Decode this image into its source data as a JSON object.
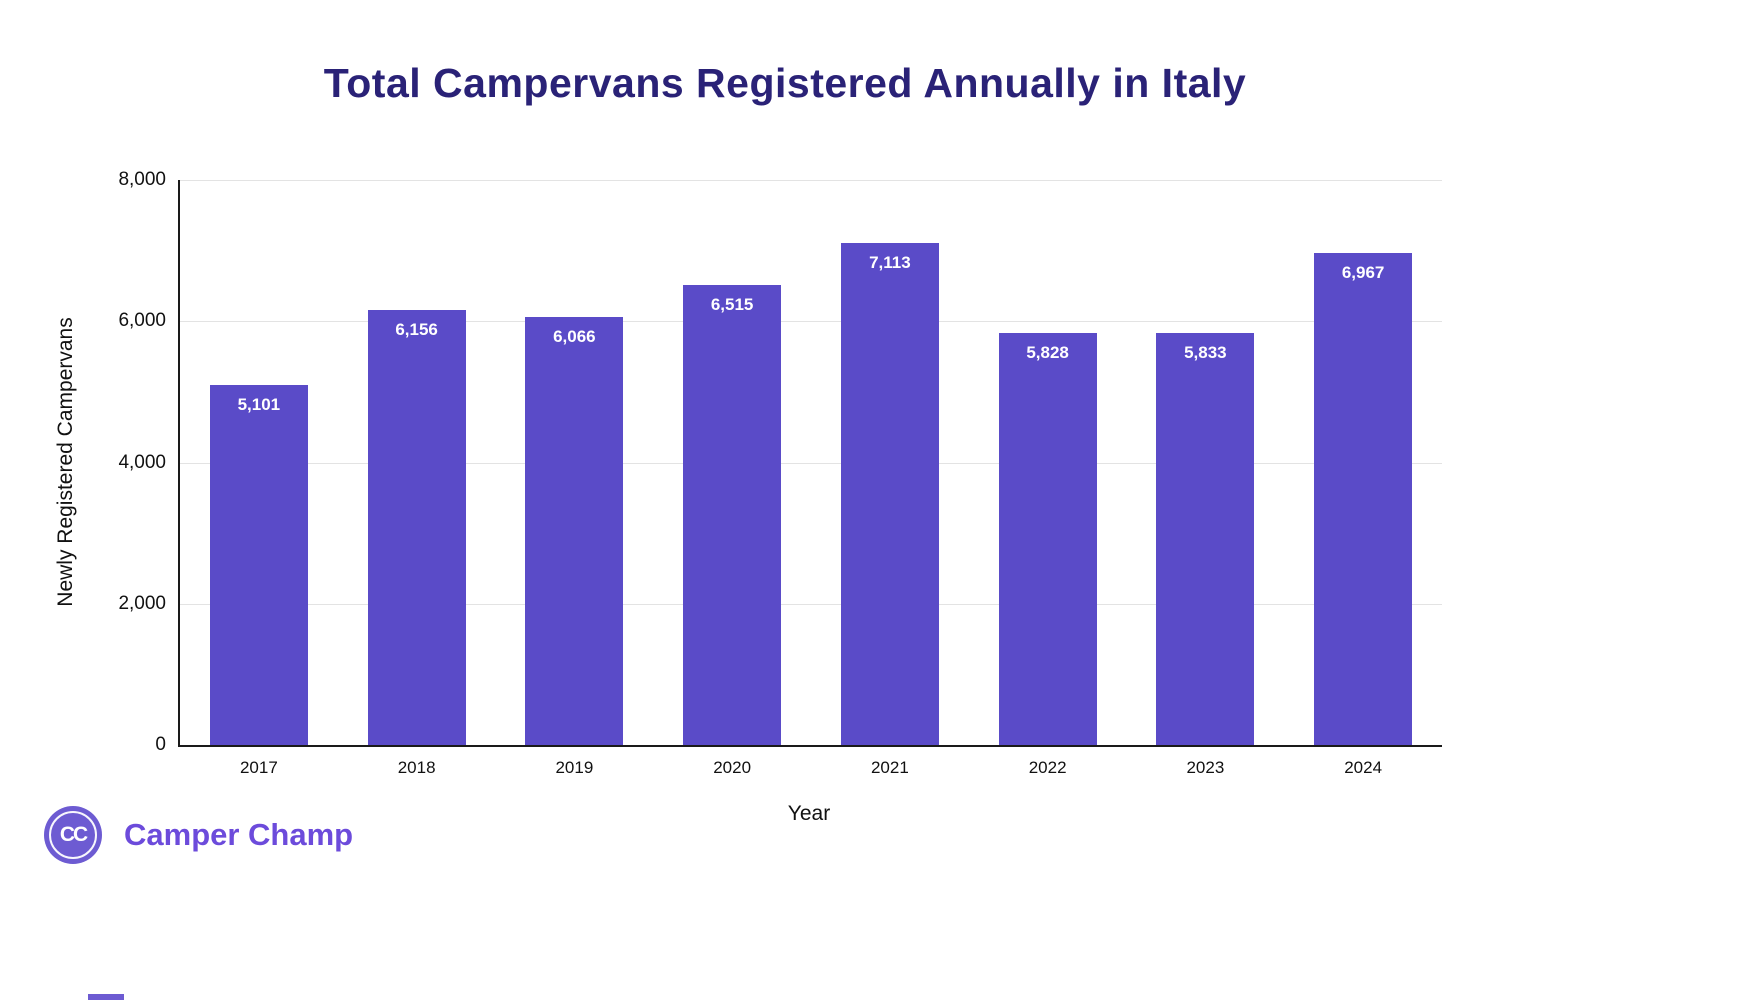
{
  "chart_data": {
    "type": "bar",
    "title": "Total Campervans Registered Annually in Italy",
    "categories": [
      "2017",
      "2018",
      "2019",
      "2020",
      "2021",
      "2022",
      "2023",
      "2024"
    ],
    "values": [
      5101,
      6156,
      6066,
      6515,
      7113,
      5828,
      5833,
      6967
    ],
    "value_labels": [
      "5,101",
      "6,156",
      "6,066",
      "6,515",
      "7,113",
      "5,828",
      "5,833",
      "6,967"
    ],
    "xlabel": "Year",
    "ylabel": "Newly Registered Campervans",
    "ylim": [
      0,
      8000
    ],
    "y_ticks": [
      {
        "label": "0",
        "value": 0
      },
      {
        "label": "2,000",
        "value": 2000
      },
      {
        "label": "4,000",
        "value": 4000
      },
      {
        "label": "6,000",
        "value": 6000
      },
      {
        "label": "8,000",
        "value": 8000
      }
    ],
    "grid": "horizontal",
    "legend": "none",
    "bar_color": "#5A4BC8",
    "title_color": "#2A2277",
    "value_label_color": "#ffffff"
  },
  "logo": {
    "monogram": "CC",
    "text": "Camper Champ",
    "color": "#6C4BDB"
  }
}
